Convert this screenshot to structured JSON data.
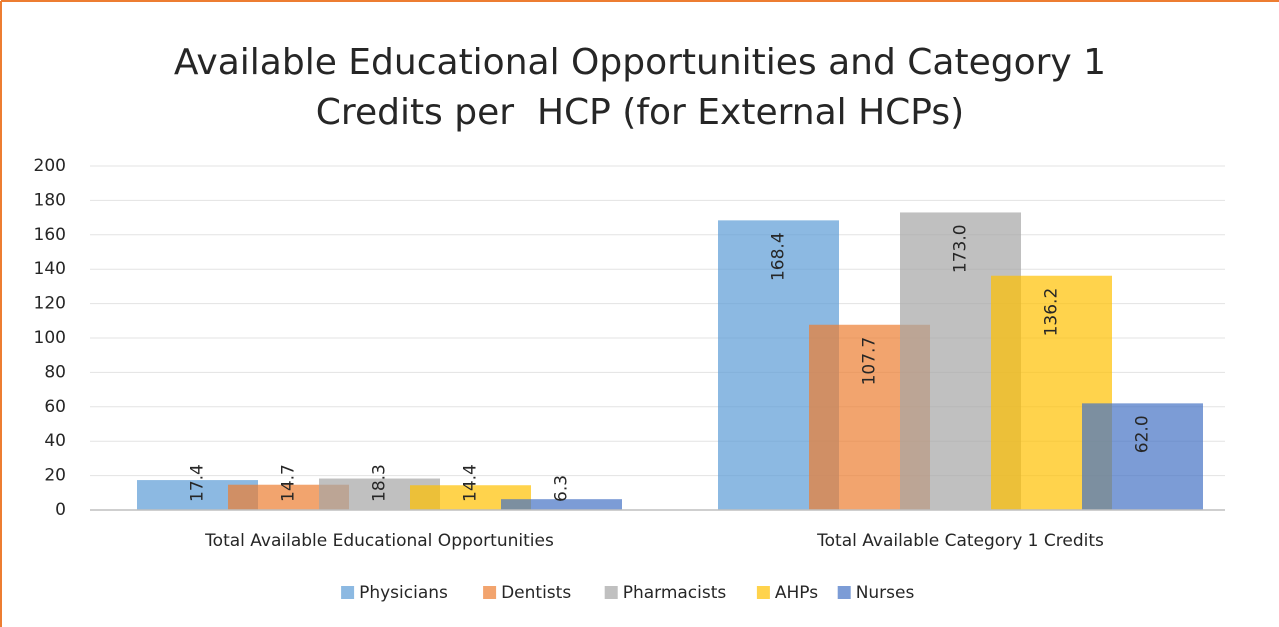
{
  "chart_data": {
    "type": "bar",
    "title": "Available Educational Opportunities and Category 1 Credits per  HCP (for External HCPs)",
    "categories": [
      "Total Available Educational Opportunities",
      "Total Available Category 1 Credits"
    ],
    "series": [
      {
        "name": "Physicians",
        "color": "#5b9bd5",
        "values": [
          17.4,
          168.4
        ],
        "value_labels": [
          "17.4",
          "168.4"
        ]
      },
      {
        "name": "Dentists",
        "color": "#ed7d31",
        "values": [
          14.7,
          107.7
        ],
        "value_labels": [
          "14.7",
          "107.7"
        ]
      },
      {
        "name": "Pharmacists",
        "color": "#a5a5a5",
        "values": [
          18.3,
          173.0
        ],
        "value_labels": [
          "18.3",
          "173.0"
        ]
      },
      {
        "name": "AHPs",
        "color": "#ffc000",
        "values": [
          14.4,
          136.2
        ],
        "value_labels": [
          "14.4",
          "136.2"
        ]
      },
      {
        "name": "Nurses",
        "color": "#4472c4",
        "values": [
          6.3,
          62.0
        ],
        "value_labels": [
          "6.3",
          "62.0"
        ]
      }
    ],
    "ylim": [
      0,
      200
    ],
    "yticks": [
      0,
      20,
      40,
      60,
      80,
      100,
      120,
      140,
      160,
      180,
      200
    ],
    "grid": true,
    "legend": "bottom"
  }
}
